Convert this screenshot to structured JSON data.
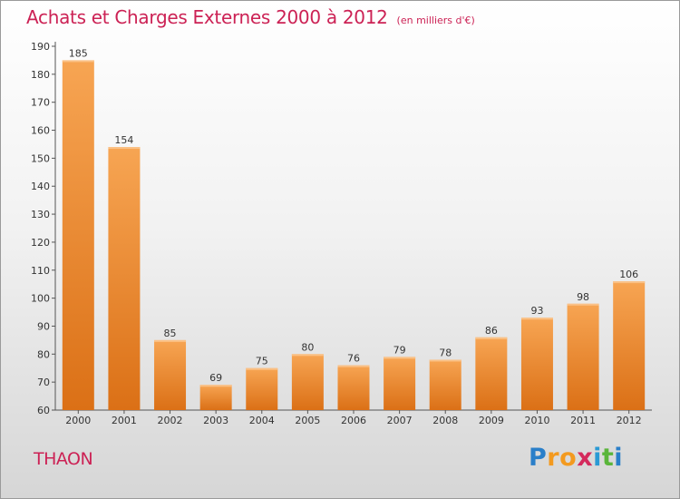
{
  "header": {
    "title": "Achats et Charges Externes 2000 à 2012",
    "subtitle": "(en milliers d'€)"
  },
  "commune": "THAON",
  "logo": {
    "letters": [
      "P",
      "r",
      "o",
      "x",
      "i",
      "t",
      "i"
    ],
    "colors": [
      "#2a7fc9",
      "#f39a1f",
      "#f39a1f",
      "#d42a5c",
      "#2a9ad4",
      "#5ab53a",
      "#2a7fc9"
    ]
  },
  "colors": {
    "bar_top": "#f7a553",
    "bar_bottom": "#db7016",
    "title": "#cc2255"
  },
  "chart_data": {
    "type": "bar",
    "categories": [
      "2000",
      "2001",
      "2002",
      "2003",
      "2004",
      "2005",
      "2006",
      "2007",
      "2008",
      "2009",
      "2010",
      "2011",
      "2012"
    ],
    "values": [
      185,
      154,
      85,
      69,
      75,
      80,
      76,
      79,
      78,
      86,
      93,
      98,
      106
    ],
    "title": "Achats et Charges Externes 2000 à 2012",
    "subtitle": "(en milliers d'€)",
    "ylim": [
      60,
      190
    ],
    "yticks": [
      60,
      70,
      80,
      90,
      100,
      110,
      120,
      130,
      140,
      150,
      160,
      170,
      180,
      190
    ],
    "grid": false,
    "legend": "none"
  }
}
